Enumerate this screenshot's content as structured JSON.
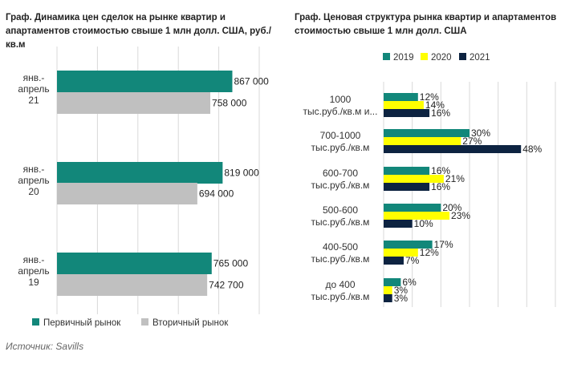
{
  "source": "Источник: Savills",
  "chart_data": [
    {
      "type": "bar",
      "orientation": "horizontal",
      "title": "Граф. Динамика цен сделок на рынке квартир и апартаментов стоимостью свыше 1 млн долл. США, руб./кв.м",
      "categories": [
        [
          "янв.-",
          "апрель",
          "21"
        ],
        [
          "янв.-",
          "апрель",
          "20"
        ],
        [
          "янв.-",
          "апрель",
          "19"
        ]
      ],
      "series": [
        {
          "name": "Первичный рынок",
          "color": "#12877a",
          "values": [
            867000,
            819000,
            765000
          ],
          "labels": [
            "867 000",
            "819 000",
            "765 000"
          ]
        },
        {
          "name": "Вторичный рынок",
          "color": "#c0c0c0",
          "values": [
            758000,
            694000,
            742700
          ],
          "labels": [
            "758 000",
            "694 000",
            "742 700"
          ]
        }
      ],
      "xlim": [
        0,
        1000000
      ],
      "grid": true,
      "legend": "bottom"
    },
    {
      "type": "bar",
      "orientation": "horizontal",
      "title": "Граф. Ценовая структура рынка квартир и апартаментов стоимостью свыше 1 млн долл. США",
      "categories": [
        [
          "1000",
          "тыс.руб./кв.м и..."
        ],
        [
          "700-1000",
          "тыс.руб./кв.м"
        ],
        [
          "600-700",
          "тыс.руб./кв.м"
        ],
        [
          "500-600",
          "тыс.руб./кв.м"
        ],
        [
          "400-500",
          "тыс.руб./кв.м"
        ],
        [
          "до 400",
          "тыс.руб./кв.м"
        ]
      ],
      "series": [
        {
          "name": "2019",
          "color": "#12877a",
          "values": [
            12,
            30,
            16,
            20,
            17,
            6
          ]
        },
        {
          "name": "2020",
          "color": "#ffff00",
          "values": [
            14,
            27,
            21,
            23,
            12,
            3
          ]
        },
        {
          "name": "2021",
          "color": "#0d2341",
          "values": [
            16,
            48,
            16,
            10,
            7,
            3
          ]
        }
      ],
      "value_suffix": "%",
      "xlim": [
        0,
        60
      ],
      "grid": true,
      "legend": "top"
    }
  ]
}
